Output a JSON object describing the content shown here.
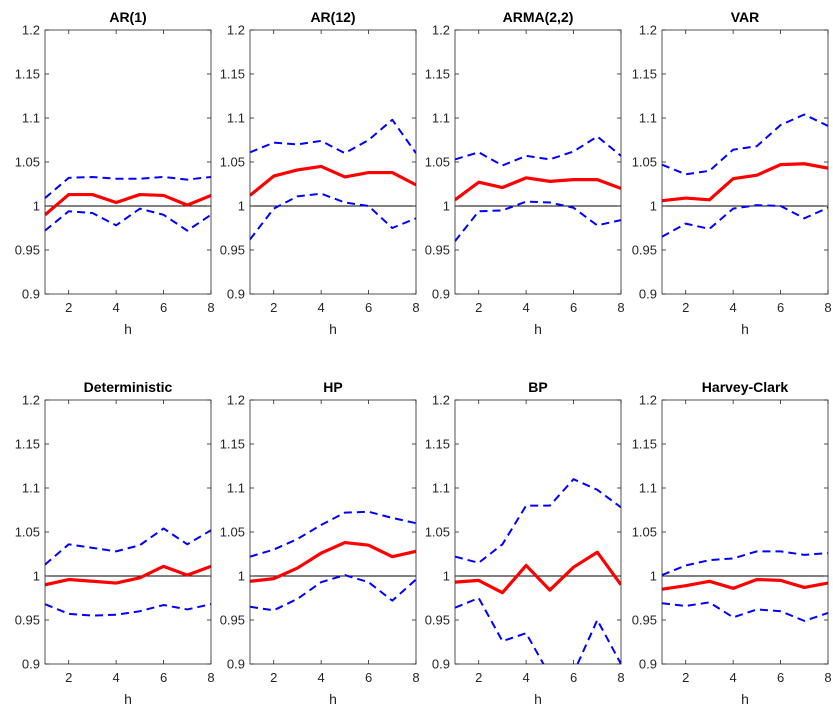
{
  "chart_data": [
    {
      "type": "line",
      "title": "AR(1)",
      "xlabel": "h",
      "ylabel": "",
      "x": [
        1,
        2,
        3,
        4,
        5,
        6,
        7,
        8
      ],
      "xlim": [
        1,
        8
      ],
      "ylim": [
        0.9,
        1.2
      ],
      "xticks": [
        2,
        4,
        6,
        8
      ],
      "yticks": [
        0.9,
        0.95,
        1,
        1.05,
        1.1,
        1.15,
        1.2
      ],
      "reference_line": 1,
      "series": [
        {
          "role": "upper-band",
          "color": "#0000ff",
          "style": "dashed",
          "values": [
            1.009,
            1.032,
            1.033,
            1.031,
            1.031,
            1.033,
            1.03,
            1.033
          ]
        },
        {
          "role": "point-estimate",
          "color": "#ff0000",
          "style": "solid",
          "values": [
            0.99,
            1.013,
            1.013,
            1.004,
            1.013,
            1.012,
            1.001,
            1.012
          ]
        },
        {
          "role": "lower-band",
          "color": "#0000ff",
          "style": "dashed",
          "values": [
            0.972,
            0.994,
            0.992,
            0.978,
            0.997,
            0.99,
            0.972,
            0.99
          ]
        }
      ]
    },
    {
      "type": "line",
      "title": "AR(12)",
      "xlabel": "h",
      "ylabel": "",
      "x": [
        1,
        2,
        3,
        4,
        5,
        6,
        7,
        8
      ],
      "xlim": [
        1,
        8
      ],
      "ylim": [
        0.9,
        1.2
      ],
      "xticks": [
        2,
        4,
        6,
        8
      ],
      "yticks": [
        0.9,
        0.95,
        1,
        1.05,
        1.1,
        1.15,
        1.2
      ],
      "reference_line": 1,
      "series": [
        {
          "role": "upper-band",
          "color": "#0000ff",
          "style": "dashed",
          "values": [
            1.061,
            1.072,
            1.07,
            1.074,
            1.06,
            1.075,
            1.098,
            1.06
          ]
        },
        {
          "role": "point-estimate",
          "color": "#ff0000",
          "style": "solid",
          "values": [
            1.012,
            1.034,
            1.041,
            1.045,
            1.033,
            1.038,
            1.038,
            1.024
          ]
        },
        {
          "role": "lower-band",
          "color": "#0000ff",
          "style": "dashed",
          "values": [
            0.962,
            0.997,
            1.011,
            1.014,
            1.004,
            1.0,
            0.975,
            0.986
          ]
        }
      ]
    },
    {
      "type": "line",
      "title": "ARMA(2,2)",
      "xlabel": "h",
      "ylabel": "",
      "x": [
        1,
        2,
        3,
        4,
        5,
        6,
        7,
        8
      ],
      "xlim": [
        1,
        8
      ],
      "ylim": [
        0.9,
        1.2
      ],
      "xticks": [
        2,
        4,
        6,
        8
      ],
      "yticks": [
        0.9,
        0.95,
        1,
        1.05,
        1.1,
        1.15,
        1.2
      ],
      "reference_line": 1,
      "series": [
        {
          "role": "upper-band",
          "color": "#0000ff",
          "style": "dashed",
          "values": [
            1.053,
            1.061,
            1.046,
            1.057,
            1.053,
            1.062,
            1.079,
            1.057
          ]
        },
        {
          "role": "point-estimate",
          "color": "#ff0000",
          "style": "solid",
          "values": [
            1.007,
            1.027,
            1.021,
            1.032,
            1.028,
            1.03,
            1.03,
            1.02
          ]
        },
        {
          "role": "lower-band",
          "color": "#0000ff",
          "style": "dashed",
          "values": [
            0.96,
            0.994,
            0.995,
            1.005,
            1.004,
            0.998,
            0.978,
            0.984
          ]
        }
      ]
    },
    {
      "type": "line",
      "title": "VAR",
      "xlabel": "h",
      "ylabel": "",
      "x": [
        1,
        2,
        3,
        4,
        5,
        6,
        7,
        8
      ],
      "xlim": [
        1,
        8
      ],
      "ylim": [
        0.9,
        1.2
      ],
      "xticks": [
        2,
        4,
        6,
        8
      ],
      "yticks": [
        0.9,
        0.95,
        1,
        1.05,
        1.1,
        1.15,
        1.2
      ],
      "reference_line": 1,
      "series": [
        {
          "role": "upper-band",
          "color": "#0000ff",
          "style": "dashed",
          "values": [
            1.047,
            1.036,
            1.04,
            1.064,
            1.068,
            1.092,
            1.104,
            1.091
          ]
        },
        {
          "role": "point-estimate",
          "color": "#ff0000",
          "style": "solid",
          "values": [
            1.006,
            1.009,
            1.007,
            1.031,
            1.035,
            1.047,
            1.048,
            1.043
          ]
        },
        {
          "role": "lower-band",
          "color": "#0000ff",
          "style": "dashed",
          "values": [
            0.965,
            0.98,
            0.974,
            0.997,
            1.001,
            1.0,
            0.986,
            0.998
          ]
        }
      ]
    },
    {
      "type": "line",
      "title": "Deterministic",
      "xlabel": "h",
      "ylabel": "",
      "x": [
        1,
        2,
        3,
        4,
        5,
        6,
        7,
        8
      ],
      "xlim": [
        1,
        8
      ],
      "ylim": [
        0.9,
        1.2
      ],
      "xticks": [
        2,
        4,
        6,
        8
      ],
      "yticks": [
        0.9,
        0.95,
        1,
        1.05,
        1.1,
        1.15,
        1.2
      ],
      "reference_line": 1,
      "series": [
        {
          "role": "upper-band",
          "color": "#0000ff",
          "style": "dashed",
          "values": [
            1.013,
            1.036,
            1.032,
            1.028,
            1.035,
            1.054,
            1.036,
            1.052
          ]
        },
        {
          "role": "point-estimate",
          "color": "#ff0000",
          "style": "solid",
          "values": [
            0.99,
            0.996,
            0.994,
            0.992,
            0.998,
            1.011,
            1.001,
            1.011
          ]
        },
        {
          "role": "lower-band",
          "color": "#0000ff",
          "style": "dashed",
          "values": [
            0.968,
            0.957,
            0.955,
            0.956,
            0.96,
            0.967,
            0.962,
            0.968
          ]
        }
      ]
    },
    {
      "type": "line",
      "title": "HP",
      "xlabel": "h",
      "ylabel": "",
      "x": [
        1,
        2,
        3,
        4,
        5,
        6,
        7,
        8
      ],
      "xlim": [
        1,
        8
      ],
      "ylim": [
        0.9,
        1.2
      ],
      "xticks": [
        2,
        4,
        6,
        8
      ],
      "yticks": [
        0.9,
        0.95,
        1,
        1.05,
        1.1,
        1.15,
        1.2
      ],
      "reference_line": 1,
      "series": [
        {
          "role": "upper-band",
          "color": "#0000ff",
          "style": "dashed",
          "values": [
            1.022,
            1.03,
            1.042,
            1.058,
            1.072,
            1.073,
            1.066,
            1.06
          ]
        },
        {
          "role": "point-estimate",
          "color": "#ff0000",
          "style": "solid",
          "values": [
            0.994,
            0.997,
            1.009,
            1.026,
            1.038,
            1.035,
            1.022,
            1.028
          ]
        },
        {
          "role": "lower-band",
          "color": "#0000ff",
          "style": "dashed",
          "values": [
            0.965,
            0.961,
            0.974,
            0.993,
            1.001,
            0.993,
            0.972,
            0.996
          ]
        }
      ]
    },
    {
      "type": "line",
      "title": "BP",
      "xlabel": "h",
      "ylabel": "",
      "x": [
        1,
        2,
        3,
        4,
        5,
        6,
        7,
        8
      ],
      "xlim": [
        1,
        8
      ],
      "ylim": [
        0.9,
        1.2
      ],
      "xticks": [
        2,
        4,
        6,
        8
      ],
      "yticks": [
        0.9,
        0.95,
        1,
        1.05,
        1.1,
        1.15,
        1.2
      ],
      "reference_line": 1,
      "series": [
        {
          "role": "upper-band",
          "color": "#0000ff",
          "style": "dashed",
          "values": [
            1.022,
            1.015,
            1.036,
            1.08,
            1.08,
            1.11,
            1.098,
            1.078
          ]
        },
        {
          "role": "point-estimate",
          "color": "#ff0000",
          "style": "solid",
          "values": [
            0.993,
            0.995,
            0.981,
            1.012,
            0.984,
            1.01,
            1.027,
            0.99
          ]
        },
        {
          "role": "lower-band",
          "color": "#0000ff",
          "style": "dashed",
          "values": [
            0.964,
            0.975,
            0.926,
            0.935,
            0.887,
            0.89,
            0.95,
            0.9
          ]
        }
      ]
    },
    {
      "type": "line",
      "title": "Harvey-Clark",
      "xlabel": "h",
      "ylabel": "",
      "x": [
        1,
        2,
        3,
        4,
        5,
        6,
        7,
        8
      ],
      "xlim": [
        1,
        8
      ],
      "ylim": [
        0.9,
        1.2
      ],
      "xticks": [
        2,
        4,
        6,
        8
      ],
      "yticks": [
        0.9,
        0.95,
        1,
        1.05,
        1.1,
        1.15,
        1.2
      ],
      "reference_line": 1,
      "series": [
        {
          "role": "upper-band",
          "color": "#0000ff",
          "style": "dashed",
          "values": [
            1.001,
            1.012,
            1.018,
            1.02,
            1.028,
            1.028,
            1.024,
            1.026
          ]
        },
        {
          "role": "point-estimate",
          "color": "#ff0000",
          "style": "solid",
          "values": [
            0.985,
            0.989,
            0.994,
            0.986,
            0.996,
            0.995,
            0.987,
            0.992
          ]
        },
        {
          "role": "lower-band",
          "color": "#0000ff",
          "style": "dashed",
          "values": [
            0.969,
            0.966,
            0.97,
            0.953,
            0.962,
            0.96,
            0.949,
            0.958
          ]
        }
      ]
    }
  ]
}
